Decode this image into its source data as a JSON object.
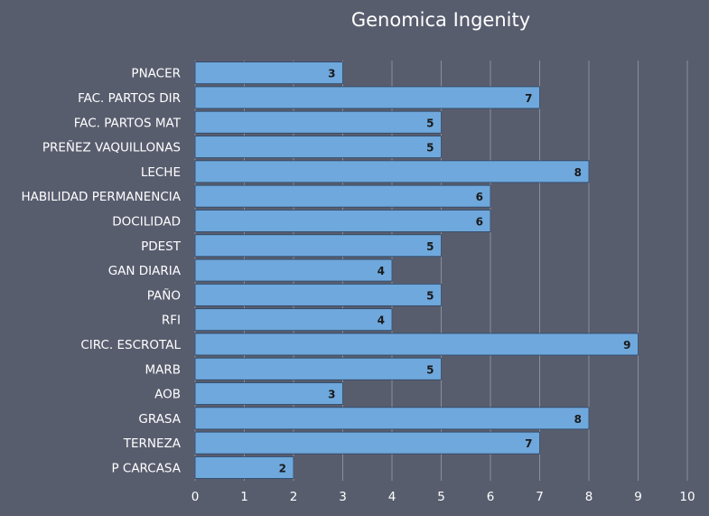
{
  "chart_data": {
    "type": "bar",
    "orientation": "horizontal",
    "title": "Genomica Ingenity",
    "xlabel": "",
    "ylabel": "",
    "xlim": [
      0,
      10
    ],
    "x_ticks": [
      0,
      1,
      2,
      3,
      4,
      5,
      6,
      7,
      8,
      9,
      10
    ],
    "grid": true,
    "legend": "none",
    "categories": [
      "PNACER",
      "FAC. PARTOS DIR",
      "FAC. PARTOS MAT",
      "PREÑEZ VAQUILLONAS",
      "LECHE",
      "HABILIDAD PERMANENCIA",
      "DOCILIDAD",
      "PDEST",
      "GAN DIARIA",
      "PAÑO",
      "RFI",
      "CIRC. ESCROTAL",
      "MARB",
      "AOB",
      "GRASA",
      "TERNEZA",
      "P CARCASA"
    ],
    "values": [
      3,
      7,
      5,
      5,
      8,
      6,
      6,
      5,
      4,
      5,
      4,
      9,
      5,
      3,
      8,
      7,
      2
    ],
    "colors": {
      "background": "#585d6e",
      "bar_fill": "#6fa8dc",
      "bar_stroke": "#2c4766",
      "grid": "#8a8f9c",
      "text": "#ffffff",
      "data_label": "#1a1a1a"
    }
  }
}
